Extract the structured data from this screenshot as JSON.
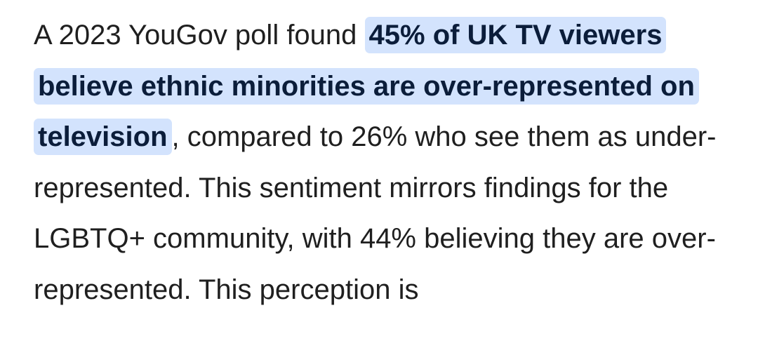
{
  "paragraph": {
    "before_highlight": "A 2023 YouGov poll found ",
    "highlight": "45% of UK TV viewers believe ethnic minorities are over-represented on television",
    "after_highlight": ", compared to 26% who see them as under-represented. This sentiment mirrors findings for the LGBTQ+ community, with 44% believing they are over-represented. This perception is"
  },
  "colors": {
    "text": "#1f1f1f",
    "highlight_background": "#d3e3fd",
    "highlight_text": "#0b1d3a",
    "background": "#ffffff"
  }
}
